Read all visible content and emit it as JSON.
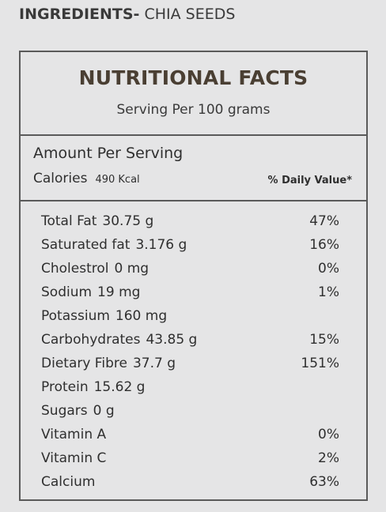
{
  "ingredients": {
    "label": "INGREDIENTS-",
    "value": " CHIA SEEDS"
  },
  "facts": {
    "title": "NUTRITIONAL FACTS",
    "serving": "Serving Per 100 grams",
    "amount_per_serving": "Amount Per Serving",
    "calories_label": "Calories",
    "calories_value": "490 Kcal",
    "daily_value_header": "% Daily Value*"
  },
  "nutrients": [
    {
      "name": "Total Fat",
      "amount": "30.75 g",
      "dv": "47%"
    },
    {
      "name": "Saturated fat",
      "amount": "3.176 g",
      "dv": "16%"
    },
    {
      "name": "Cholestrol",
      "amount": "0 mg",
      "dv": "0%"
    },
    {
      "name": "Sodium",
      "amount": "19 mg",
      "dv": "1%"
    },
    {
      "name": "Potassium",
      "amount": "160 mg",
      "dv": ""
    },
    {
      "name": "Carbohydrates",
      "amount": "43.85 g",
      "dv": "15%"
    },
    {
      "name": "Dietary Fibre",
      "amount": "37.7 g",
      "dv": "151%"
    },
    {
      "name": "Protein",
      "amount": "15.62 g",
      "dv": ""
    },
    {
      "name": "Sugars",
      "amount": "0 g",
      "dv": ""
    },
    {
      "name": "Vitamin A",
      "amount": "",
      "dv": "0%"
    },
    {
      "name": "Vitamin C",
      "amount": "",
      "dv": "2%"
    },
    {
      "name": "Calcium",
      "amount": "",
      "dv": "63%"
    }
  ],
  "colors": {
    "background": "#e5e5e6",
    "title": "#4a3f33",
    "border": "#5a5a5a",
    "text": "#2f2f2f"
  }
}
